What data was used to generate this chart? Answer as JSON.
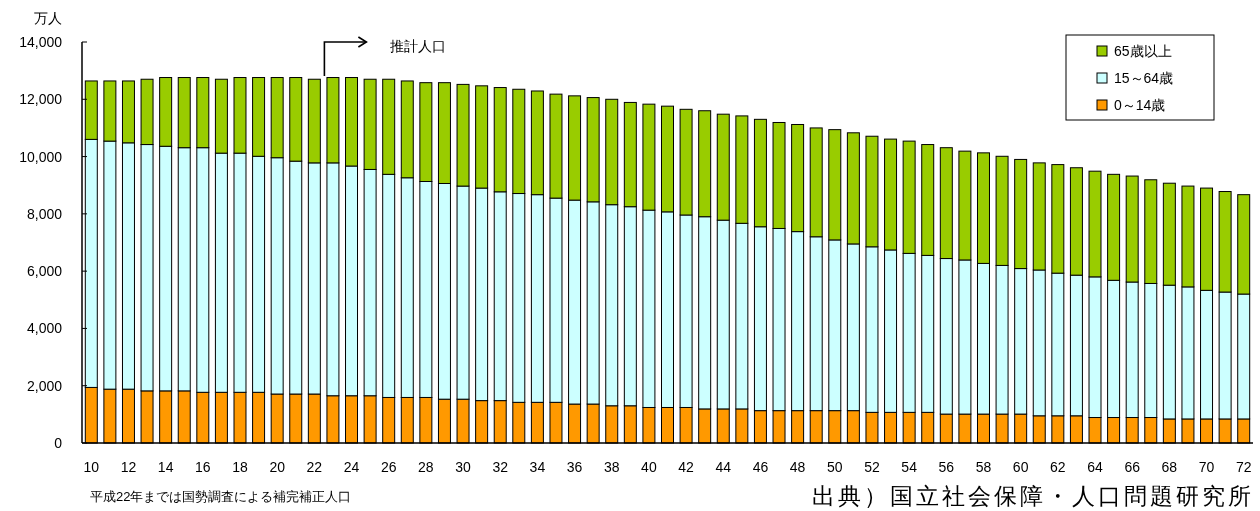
{
  "chart_data": {
    "type": "bar",
    "stacked": true,
    "ylabel": "万人",
    "legend": "top right",
    "categories": [
      "10",
      null,
      "12",
      null,
      "14",
      null,
      "16",
      null,
      "18",
      null,
      "20",
      null,
      "22",
      null,
      "24",
      null,
      "26",
      null,
      "28",
      null,
      "30",
      null,
      "32",
      null,
      "34",
      null,
      "36",
      null,
      "38",
      null,
      "40",
      null,
      "42",
      null,
      "44",
      null,
      "46",
      null,
      "48",
      null,
      "50",
      null,
      "52",
      null,
      "54",
      null,
      "56",
      null,
      "58",
      null,
      "60",
      null,
      "62",
      null,
      "64",
      null,
      "66",
      null,
      "68",
      null,
      "70",
      null,
      "72"
    ],
    "series": [
      {
        "name": "0～14歳",
        "color": "#ff9900",
        "values": [
          1940,
          1880,
          1880,
          1820,
          1820,
          1820,
          1770,
          1770,
          1770,
          1770,
          1710,
          1710,
          1710,
          1650,
          1650,
          1650,
          1590,
          1590,
          1590,
          1530,
          1530,
          1480,
          1480,
          1420,
          1420,
          1420,
          1360,
          1360,
          1300,
          1300,
          1240,
          1240,
          1240,
          1190,
          1190,
          1190,
          1130,
          1130,
          1130,
          1130,
          1130,
          1130,
          1070,
          1070,
          1070,
          1070,
          1010,
          1010,
          1010,
          1010,
          1010,
          950,
          950,
          950,
          890,
          890,
          890,
          890,
          840,
          840,
          840,
          840,
          840
        ]
      },
      {
        "name": "15～64歳",
        "color": "#ccffff",
        "values": [
          8660,
          8660,
          8600,
          8600,
          8540,
          8490,
          8540,
          8350,
          8350,
          8240,
          8250,
          8130,
          8070,
          8130,
          8020,
          7900,
          7790,
          7670,
          7540,
          7530,
          7440,
          7420,
          7290,
          7290,
          7250,
          7130,
          7120,
          7060,
          7020,
          6950,
          6890,
          6830,
          6720,
          6710,
          6590,
          6480,
          6420,
          6360,
          6250,
          6070,
          5960,
          5820,
          5780,
          5670,
          5550,
          5480,
          5430,
          5380,
          5260,
          5190,
          5080,
          5090,
          4980,
          4910,
          4910,
          4790,
          4730,
          4680,
          4670,
          4610,
          4490,
          4430,
          4360
        ]
      },
      {
        "name": "65歳以上",
        "color": "#99cc00",
        "values": [
          2040,
          2100,
          2160,
          2280,
          2400,
          2450,
          2450,
          2580,
          2640,
          2750,
          2800,
          2920,
          2920,
          2980,
          3090,
          3150,
          3320,
          3380,
          3450,
          3520,
          3550,
          3570,
          3640,
          3640,
          3620,
          3630,
          3640,
          3640,
          3680,
          3640,
          3700,
          3690,
          3690,
          3700,
          3700,
          3750,
          3750,
          3700,
          3740,
          3800,
          3850,
          3880,
          3860,
          3870,
          3920,
          3870,
          3870,
          3800,
          3860,
          3810,
          3810,
          3740,
          3790,
          3750,
          3690,
          3700,
          3700,
          3620,
          3560,
          3520,
          3570,
          3510,
          3470
        ]
      }
    ],
    "ylim": [
      0,
      14000
    ],
    "yticks": [
      0,
      {
        "value": 2000,
        "label": "2,000"
      },
      {
        "value": 4000,
        "label": "4,000"
      },
      {
        "value": 6000,
        "label": "6,000"
      },
      {
        "value": 8000,
        "label": "8,000"
      },
      {
        "value": 10000,
        "label": "10,000"
      },
      {
        "value": 12000,
        "label": "12,000"
      },
      {
        "value": 14000,
        "label": "14,000"
      }
    ],
    "annotations": [
      "推計人口",
      "平成22年までは国勢調査による補完補正人口",
      "出典）国立社会保障・人口問題研究所"
    ]
  }
}
